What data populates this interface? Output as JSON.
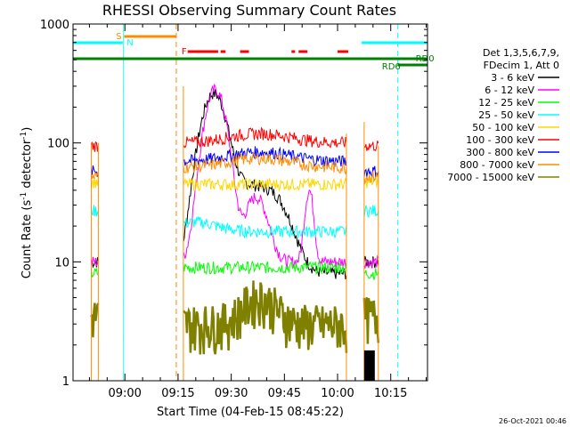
{
  "chart_data": {
    "type": "line",
    "title": "RHESSI Observing Summary Count Rates",
    "xlabel": "Start Time (04-Feb-15 08:45:22)",
    "ylabel_main": "Count Rate (s",
    "ylabel_sup": "-1",
    "ylabel_mid": " detector",
    "ylabel_sup2": "-1",
    "ylabel_end": ")",
    "yscale": "log",
    "ylim": [
      1,
      1000
    ],
    "xlim_minutes": [
      525.37,
      625.37
    ],
    "x_ticks": [
      {
        "label": "09:00",
        "minute": 540
      },
      {
        "label": "09:15",
        "minute": 555
      },
      {
        "label": "09:30",
        "minute": 570
      },
      {
        "label": "09:45",
        "minute": 585
      },
      {
        "label": "10:00",
        "minute": 600
      },
      {
        "label": "10:15",
        "minute": 615
      }
    ],
    "y_ticks": [
      {
        "label": "1000",
        "value": 1000
      },
      {
        "label": "100",
        "value": 100
      },
      {
        "label": "10",
        "value": 10
      },
      {
        "label": "1",
        "value": 1
      }
    ],
    "legend": {
      "header1": "Det 1,3,5,6,7,9,",
      "header2": "FDecim 1, Att 0",
      "placement": "right"
    },
    "series": [
      {
        "name": "3 - 6 keV",
        "color": "#000000",
        "kind": "flare"
      },
      {
        "name": "6 - 12 keV",
        "color": "#ff00ff",
        "kind": "flare2"
      },
      {
        "name": "12 - 25 keV",
        "color": "#00ff00",
        "base": 9,
        "night": 8
      },
      {
        "name": "25 - 50 keV",
        "color": "#00ffff",
        "base": 18,
        "night": 27
      },
      {
        "name": "50 - 100 keV",
        "color": "#ffd700",
        "base": 45,
        "night": 47
      },
      {
        "name": "100 - 300 keV",
        "color": "#ff0000",
        "base": 100,
        "night": 95
      },
      {
        "name": "300 - 800 keV",
        "color": "#0000ff",
        "base": 70,
        "night": 58
      },
      {
        "name": "800 - 7000 keV",
        "color": "#ff8c00",
        "base": 62,
        "night": 52
      },
      {
        "name": "7000 - 15000 keV",
        "color": "#808000",
        "base": 3,
        "night": 3.5
      }
    ],
    "flags": [
      {
        "label": "S",
        "color": "#ff8c00"
      },
      {
        "label": "N",
        "color": "#00ffff"
      },
      {
        "label": "F",
        "color": "#ff0000"
      },
      {
        "label": "RD0",
        "color": "#008000"
      },
      {
        "label": "RD6",
        "color": "#008000"
      }
    ],
    "timestamp": "26-Oct-2021 00:46"
  }
}
